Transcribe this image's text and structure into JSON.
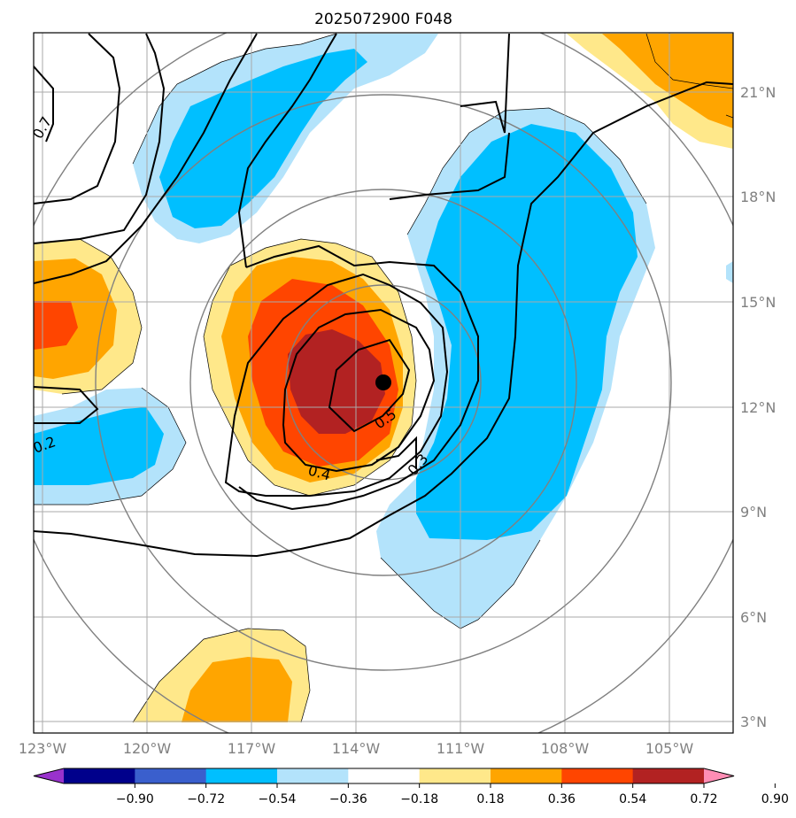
{
  "title": "2025072900 F048",
  "map": {
    "lon_labels": [
      "123°W",
      "120°W",
      "117°W",
      "114°W",
      "111°W",
      "108°W",
      "105°W"
    ],
    "lon_values": [
      -123,
      -120,
      -117,
      -114,
      -111,
      -108,
      -105
    ],
    "lat_labels": [
      "21°N",
      "18°N",
      "15°N",
      "12°N",
      "9°N",
      "6°N",
      "3°N"
    ],
    "lat_values": [
      21,
      18,
      15,
      12,
      9,
      6,
      3
    ],
    "extent": {
      "lon_min": -123.2,
      "lon_max": -103.2,
      "lat_min": 2.7,
      "lat_max": 22.5
    },
    "storm_center": {
      "lon": -113.2,
      "lat": 12.7
    },
    "contour_labels": [
      "0.7",
      "0.2",
      "0.5",
      "0.4",
      "0.3"
    ]
  },
  "colorbar": {
    "tick_labels": [
      "−0.90",
      "−0.72",
      "−0.54",
      "−0.36",
      "−0.18",
      "0.18",
      "0.36",
      "0.54",
      "0.72",
      "0.90"
    ],
    "colors": [
      "#9932cc",
      "#00008b",
      "#3a5fcd",
      "#00bfff",
      "#b3e3fb",
      "#ffffff",
      "#ffe88a",
      "#ffa500",
      "#ff4500",
      "#b22222",
      "#ff8db4"
    ]
  }
}
